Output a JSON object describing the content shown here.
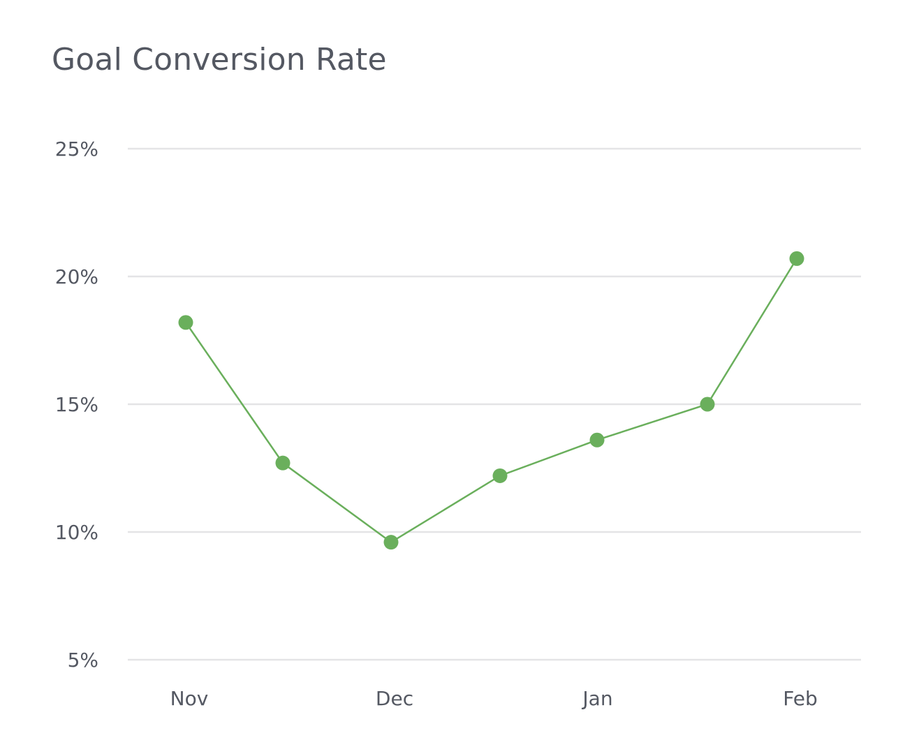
{
  "chart_data": {
    "type": "line",
    "title": "Goal Conversion Rate",
    "xlabel": "",
    "ylabel": "",
    "x_tick_labels": [
      "Nov",
      "Dec",
      "Jan",
      "Feb"
    ],
    "y_tick_labels": [
      "25%",
      "20%",
      "15%",
      "10%",
      "5%"
    ],
    "y_ticks": [
      25,
      20,
      15,
      10,
      5
    ],
    "ylim": [
      5,
      25
    ],
    "x_range": [
      "Nov",
      "Feb"
    ],
    "grid": "horizontal",
    "legend": "none",
    "series": [
      {
        "color": "#6aaf5c",
        "points": [
          {
            "x": "Nov",
            "y": 18.2
          },
          {
            "x": "mid Nov",
            "y": 12.7
          },
          {
            "x": "Dec",
            "y": 9.6
          },
          {
            "x": "mid Dec",
            "y": 12.2
          },
          {
            "x": "Jan",
            "y": 13.6
          },
          {
            "x": "mid Jan",
            "y": 15.0
          },
          {
            "x": "Feb",
            "y": 20.7
          }
        ]
      }
    ]
  }
}
